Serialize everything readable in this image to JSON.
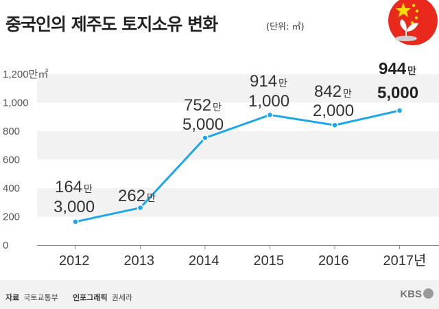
{
  "header": {
    "title": "중국인의 제주도 토지소유 변화",
    "unit": "(단위: ㎡)"
  },
  "footer": {
    "source_label": "자료",
    "source": "국토교통부",
    "graphic_label": "인포그래픽",
    "graphic_author": "권세라",
    "brand": "KBS"
  },
  "colors": {
    "line": "#1aa6ec",
    "band": "#f2f2f2",
    "flag": "#e8291c",
    "star": "#ffde00"
  },
  "chart_data": {
    "type": "line",
    "title": "중국인의 제주도 토지소유 변화",
    "unit": "㎡",
    "categories": [
      "2012",
      "2013",
      "2014",
      "2015",
      "2016",
      "2017"
    ],
    "x_tick_labels": [
      "2012",
      "2013",
      "2014",
      "2015",
      "2016",
      "2017년"
    ],
    "values": [
      1643000,
      2622000,
      7525000,
      9141000,
      8422000,
      9445000
    ],
    "ylim": [
      0,
      12000000
    ],
    "y_ticks": [
      0,
      2000000,
      4000000,
      6000000,
      8000000,
      10000000,
      12000000
    ],
    "y_tick_labels": [
      "0",
      "200",
      "400",
      "600",
      "800",
      "1,000",
      "1,200만㎡"
    ],
    "value_labels": [
      {
        "big": "164",
        "unit": "만",
        "small": "3,000",
        "highlight": false
      },
      {
        "big": "262",
        "unit": "만",
        "small": "",
        "highlight": false
      },
      {
        "big": "752",
        "unit": "만",
        "small": "5,000",
        "highlight": false
      },
      {
        "big": "914",
        "unit": "만",
        "small": "1,000",
        "highlight": false
      },
      {
        "big": "842",
        "unit": "만",
        "small": "2,000",
        "highlight": false
      },
      {
        "big": "944",
        "unit": "만",
        "small": "5,000",
        "highlight": true
      }
    ],
    "grid": "alternating horizontal bands",
    "legend": "none"
  }
}
